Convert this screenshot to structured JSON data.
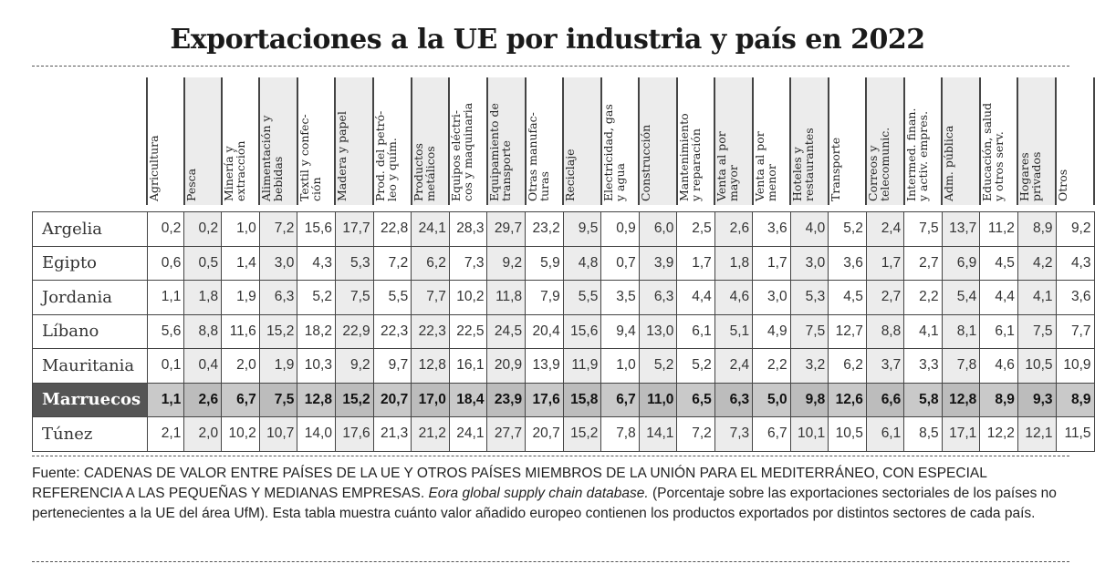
{
  "title": "Exportaciones a la UE por industria y país en 2022",
  "chart_data": {
    "type": "table",
    "title": "Exportaciones a la UE por industria y país en 2022",
    "columns": [
      "Agricultura",
      "Pesca",
      "Minería y\nextracción",
      "Alimentación y\nbebidas",
      "Textil y confec-\nción",
      "Madera y papel",
      "Prod. del petró-\nleo y quím.",
      "Productos\nmetálicos",
      "Equipos eléctri-\ncos y maquinaria",
      "Equipamiento de\ntransporte",
      "Otras manufac-\nturas",
      "Reciclaje",
      "Electricidad, gas\ny agua",
      "Construcción",
      "Mantenimiento\ny reparación",
      "Venta al por\nmayor",
      "Venta al por\nmenor",
      "Hoteles y\nrestaurantes",
      "Transporte",
      "Correos y\ntelecomunic.",
      "Intermed. finan.\ny activ. empres.",
      "Adm. pública",
      "Educación, salud\ny otros serv.",
      "Hogares\nprivados",
      "Otros"
    ],
    "rows": [
      {
        "country": "Argelia",
        "values": [
          "0,2",
          "0,2",
          "1,0",
          "7,2",
          "15,6",
          "17,7",
          "22,8",
          "24,1",
          "28,3",
          "29,7",
          "23,2",
          "9,5",
          "0,9",
          "6,0",
          "2,5",
          "2,6",
          "3,6",
          "4,0",
          "5,2",
          "2,4",
          "7,5",
          "13,7",
          "11,2",
          "8,9",
          "9,2"
        ]
      },
      {
        "country": "Egipto",
        "values": [
          "0,6",
          "0,5",
          "1,4",
          "3,0",
          "4,3",
          "5,3",
          "7,2",
          "6,2",
          "7,3",
          "9,2",
          "5,9",
          "4,8",
          "0,7",
          "3,9",
          "1,7",
          "1,8",
          "1,7",
          "3,0",
          "3,6",
          "1,7",
          "2,7",
          "6,9",
          "4,5",
          "4,2",
          "4,3"
        ]
      },
      {
        "country": "Jordania",
        "values": [
          "1,1",
          "1,8",
          "1,9",
          "6,3",
          "5,2",
          "7,5",
          "5,5",
          "7,7",
          "10,2",
          "11,8",
          "7,9",
          "5,5",
          "3,5",
          "6,3",
          "4,4",
          "4,6",
          "3,0",
          "5,3",
          "4,5",
          "2,7",
          "2,2",
          "5,4",
          "4,4",
          "4,1",
          "3,6"
        ]
      },
      {
        "country": "Líbano",
        "values": [
          "5,6",
          "8,8",
          "11,6",
          "15,2",
          "18,2",
          "22,9",
          "22,3",
          "22,3",
          "22,5",
          "24,5",
          "20,4",
          "15,6",
          "9,4",
          "13,0",
          "6,1",
          "5,1",
          "4,9",
          "7,5",
          "12,7",
          "8,8",
          "4,1",
          "8,1",
          "6,1",
          "7,5",
          "7,7"
        ]
      },
      {
        "country": "Mauritania",
        "values": [
          "0,1",
          "0,4",
          "2,0",
          "1,9",
          "10,3",
          "9,2",
          "9,7",
          "12,8",
          "16,1",
          "20,9",
          "13,9",
          "11,9",
          "1,0",
          "5,2",
          "5,2",
          "2,4",
          "2,2",
          "3,2",
          "6,2",
          "3,7",
          "3,3",
          "7,8",
          "4,6",
          "10,5",
          "10,9"
        ]
      },
      {
        "country": "Marruecos",
        "highlight": true,
        "values": [
          "1,1",
          "2,6",
          "6,7",
          "7,5",
          "12,8",
          "15,2",
          "20,7",
          "17,0",
          "18,4",
          "23,9",
          "17,6",
          "15,8",
          "6,7",
          "11,0",
          "6,5",
          "6,3",
          "5,0",
          "9,8",
          "12,6",
          "6,6",
          "5,8",
          "12,8",
          "8,9",
          "9,3",
          "8,9"
        ]
      },
      {
        "country": "Túnez",
        "values": [
          "2,1",
          "2,0",
          "10,2",
          "10,7",
          "14,0",
          "17,6",
          "21,3",
          "21,2",
          "24,1",
          "27,7",
          "20,7",
          "15,2",
          "7,8",
          "14,1",
          "7,2",
          "7,3",
          "6,7",
          "10,1",
          "10,5",
          "6,1",
          "8,5",
          "17,1",
          "12,2",
          "12,1",
          "11,5"
        ]
      }
    ],
    "colors": {
      "highlight_label_bg": "#555555",
      "highlight_row_bg": "#c9c9c9",
      "shaded_column_bg": "#ececec"
    }
  },
  "footnote": {
    "part1": "Fuente: CADENAS DE VALOR ENTRE PAÍSES DE LA UE Y OTROS PAÍSES MIEMBROS DE LA UNIÓN PARA EL MEDITERRÁNEO, CON ESPECIAL REFERENCIA A LAS PEQUEÑAS Y MEDIANAS EMPRESAS. ",
    "italic": "Eora global supply chain database.",
    "part2": " (Porcentaje sobre las exportaciones sectoriales de los países no pertenecientes a la UE del área UfM). Esta tabla muestra cuánto valor añadido europeo contienen los productos exportados por distintos sectores de cada país."
  }
}
